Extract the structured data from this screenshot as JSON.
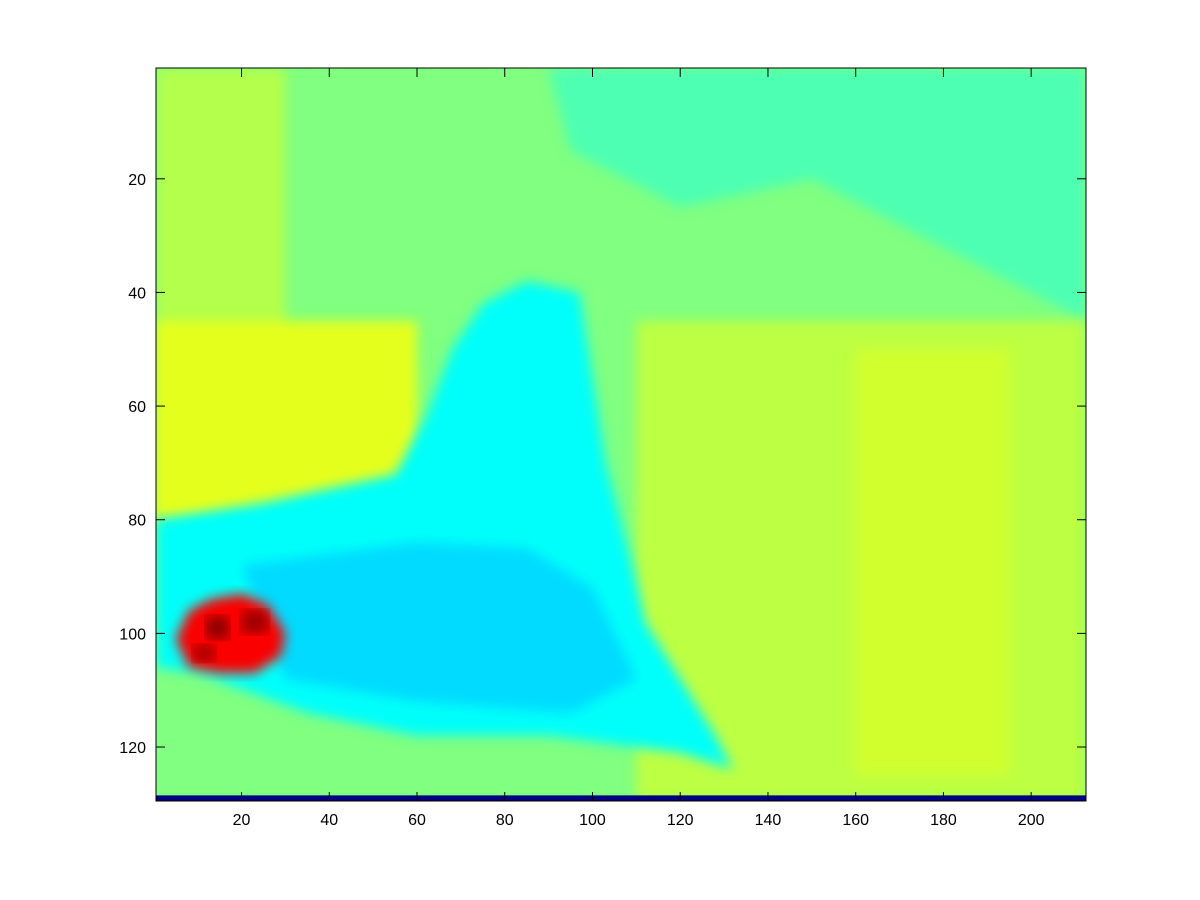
{
  "chart_data": {
    "type": "heatmap",
    "title": "",
    "xlabel": "",
    "ylabel": "",
    "colormap": "jet",
    "xlim": [
      0.5,
      212.5
    ],
    "ylim": [
      0.5,
      129.5
    ],
    "y_direction": "reverse",
    "grid": false,
    "legend": "none",
    "x_ticks": [
      20,
      40,
      60,
      80,
      100,
      120,
      140,
      160,
      180,
      200
    ],
    "x_tick_labels": [
      "20",
      "40",
      "60",
      "80",
      "100",
      "120",
      "140",
      "160",
      "180",
      "200"
    ],
    "y_ticks": [
      20,
      40,
      60,
      80,
      100,
      120
    ],
    "y_tick_labels": [
      "20",
      "40",
      "60",
      "80",
      "100",
      "120"
    ],
    "background_level": 0.5,
    "regions": [
      {
        "name": "upper-left",
        "points": [
          [
            0.5,
            0.5
          ],
          [
            30,
            0.5
          ],
          [
            30,
            80
          ],
          [
            0.5,
            80
          ]
        ],
        "level": 0.55
      },
      {
        "name": "left-mid",
        "points": [
          [
            0.5,
            45
          ],
          [
            60,
            45
          ],
          [
            60,
            78
          ],
          [
            0.5,
            80
          ]
        ],
        "level": 0.6
      },
      {
        "name": "top-right-cool",
        "points": [
          [
            90,
            0.5
          ],
          [
            212.5,
            0.5
          ],
          [
            212.5,
            45
          ],
          [
            175,
            30
          ],
          [
            150,
            20
          ],
          [
            120,
            25
          ],
          [
            95,
            15
          ]
        ],
        "level": 0.45
      },
      {
        "name": "right-lower",
        "points": [
          [
            110,
            45
          ],
          [
            212.5,
            45
          ],
          [
            212.5,
            129.5
          ],
          [
            110,
            129.5
          ]
        ],
        "level": 0.56
      },
      {
        "name": "right-band",
        "points": [
          [
            160,
            50
          ],
          [
            195,
            50
          ],
          [
            195,
            125
          ],
          [
            160,
            125
          ]
        ],
        "level": 0.58
      },
      {
        "name": "cyan-shape",
        "points": [
          [
            0.5,
            80
          ],
          [
            25,
            77
          ],
          [
            55,
            72
          ],
          [
            62,
            62
          ],
          [
            68,
            50
          ],
          [
            75,
            42
          ],
          [
            85,
            38
          ],
          [
            97,
            40
          ],
          [
            100,
            55
          ],
          [
            103,
            70
          ],
          [
            108,
            85
          ],
          [
            112,
            98
          ],
          [
            120,
            108
          ],
          [
            128,
            118
          ],
          [
            132,
            124
          ],
          [
            120,
            121
          ],
          [
            90,
            118
          ],
          [
            60,
            118
          ],
          [
            35,
            114
          ],
          [
            10,
            107
          ],
          [
            0.5,
            106
          ]
        ],
        "level": 0.38
      },
      {
        "name": "cyan-core",
        "points": [
          [
            20,
            88
          ],
          [
            60,
            84
          ],
          [
            85,
            85
          ],
          [
            100,
            92
          ],
          [
            110,
            108
          ],
          [
            95,
            114
          ],
          [
            60,
            112
          ],
          [
            30,
            108
          ]
        ],
        "level": 0.34
      },
      {
        "name": "hot-spot",
        "points": [
          [
            5,
            101
          ],
          [
            8,
            96
          ],
          [
            13,
            94
          ],
          [
            20,
            93
          ],
          [
            26,
            95
          ],
          [
            30,
            100
          ],
          [
            29,
            104
          ],
          [
            23,
            107
          ],
          [
            15,
            107
          ],
          [
            8,
            106
          ]
        ],
        "level": 0.88
      },
      {
        "name": "hot-core-1",
        "points": [
          [
            12,
            97
          ],
          [
            17,
            97
          ],
          [
            17,
            101
          ],
          [
            12,
            101
          ]
        ],
        "level": 0.99
      },
      {
        "name": "hot-core-2",
        "points": [
          [
            20,
            96
          ],
          [
            26,
            96
          ],
          [
            26,
            100
          ],
          [
            20,
            100
          ]
        ],
        "level": 0.97
      },
      {
        "name": "hot-core-3",
        "points": [
          [
            9,
            102
          ],
          [
            14,
            102
          ],
          [
            14,
            105
          ],
          [
            9,
            105
          ]
        ],
        "level": 0.96
      },
      {
        "name": "bottom-row",
        "points": [
          [
            0.5,
            128.5
          ],
          [
            212.5,
            128.5
          ],
          [
            212.5,
            129.5
          ],
          [
            0.5,
            129.5
          ]
        ],
        "level": 0.0
      }
    ]
  }
}
